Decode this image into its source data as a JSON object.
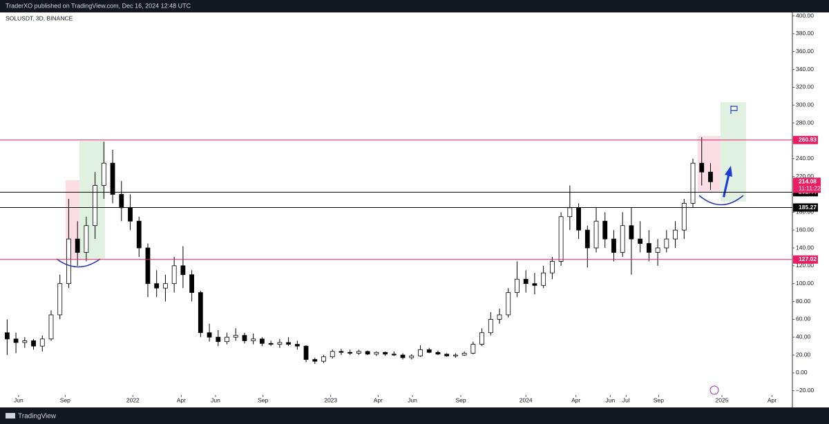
{
  "header": {
    "text": "TraderXO published on TradingView.com, Dec 16, 2024 12:48 UTC"
  },
  "footer": {
    "text": "TradingView"
  },
  "chart_data": {
    "type": "candlestick",
    "title": "SOLUSDT, 3D, BINANCE",
    "up_color": "#ffffff",
    "down_color": "#000000",
    "wick_color": "#000000",
    "categories": [
      null,
      null,
      null,
      null,
      null,
      null,
      null,
      null,
      null,
      null,
      null,
      null,
      null,
      null,
      null,
      null,
      null,
      null,
      null,
      null,
      null,
      null,
      null,
      null,
      null,
      null,
      null,
      null,
      null,
      null,
      null,
      null,
      null,
      null,
      null,
      null,
      null,
      null,
      null,
      null,
      null,
      null,
      null,
      null,
      null,
      null,
      null,
      null,
      null,
      null,
      null,
      null,
      null,
      null,
      null,
      null,
      null,
      null,
      null,
      null,
      null,
      null,
      null,
      null,
      null,
      null,
      null,
      null,
      null,
      null,
      null,
      null,
      null,
      null,
      null,
      null,
      null,
      null,
      null,
      null,
      null
    ],
    "open": [
      45,
      38,
      34,
      36,
      30,
      38,
      65,
      100,
      150,
      135,
      165,
      210,
      235,
      200,
      185,
      170,
      140,
      100,
      95,
      100,
      120,
      110,
      90,
      45,
      40,
      35,
      40,
      42,
      36,
      38,
      33,
      32,
      34,
      32,
      30,
      15,
      13,
      18,
      24,
      23,
      22,
      24,
      21,
      23,
      21,
      20,
      17,
      19,
      26,
      23,
      21,
      19,
      20,
      22,
      32,
      45,
      60,
      65,
      90,
      105,
      100,
      98,
      112,
      125,
      175,
      185,
      160,
      140,
      170,
      150,
      135,
      165,
      150,
      145,
      135,
      140,
      150,
      160,
      190,
      235,
      225
    ],
    "high": [
      60,
      45,
      40,
      38,
      42,
      70,
      110,
      195,
      170,
      175,
      225,
      259,
      250,
      215,
      200,
      175,
      145,
      115,
      110,
      130,
      142,
      115,
      92,
      55,
      48,
      45,
      50,
      45,
      44,
      40,
      36,
      38,
      40,
      36,
      31,
      17,
      20,
      26,
      27,
      26,
      26,
      25,
      24,
      24,
      24,
      22,
      21,
      31,
      28,
      25,
      22,
      22,
      24,
      35,
      50,
      68,
      72,
      95,
      125,
      115,
      112,
      120,
      130,
      180,
      210,
      190,
      165,
      185,
      180,
      160,
      180,
      185,
      170,
      160,
      150,
      160,
      170,
      195,
      240,
      264,
      235
    ],
    "low": [
      20,
      22,
      28,
      26,
      24,
      36,
      60,
      95,
      120,
      125,
      150,
      195,
      190,
      170,
      160,
      130,
      85,
      85,
      80,
      90,
      95,
      80,
      40,
      35,
      30,
      32,
      36,
      33,
      32,
      30,
      30,
      28,
      30,
      26,
      12,
      10,
      11,
      16,
      20,
      20,
      20,
      20,
      19,
      19,
      19,
      15,
      15,
      18,
      22,
      20,
      18,
      17,
      19,
      21,
      30,
      42,
      55,
      62,
      85,
      90,
      88,
      95,
      105,
      120,
      160,
      150,
      118,
      135,
      140,
      125,
      130,
      110,
      135,
      125,
      120,
      135,
      140,
      150,
      185,
      210,
      205
    ],
    "close": [
      38,
      34,
      36,
      30,
      38,
      65,
      100,
      150,
      135,
      165,
      210,
      235,
      200,
      185,
      170,
      140,
      100,
      95,
      100,
      120,
      110,
      90,
      45,
      40,
      35,
      40,
      42,
      36,
      38,
      33,
      32,
      34,
      32,
      30,
      15,
      13,
      18,
      24,
      23,
      22,
      24,
      21,
      23,
      21,
      20,
      17,
      19,
      26,
      23,
      21,
      19,
      20,
      22,
      32,
      45,
      60,
      65,
      90,
      105,
      100,
      98,
      112,
      125,
      175,
      185,
      160,
      140,
      170,
      150,
      135,
      165,
      150,
      145,
      135,
      140,
      150,
      160,
      190,
      235,
      225,
      214.08
    ],
    "xlim": [
      -0.5,
      89
    ],
    "xticks": [
      {
        "value": 1.3,
        "label": "Jun"
      },
      {
        "value": 6.6,
        "label": "Sep"
      },
      {
        "value": 14.3,
        "label": "2022"
      },
      {
        "value": 19.8,
        "label": "Apr"
      },
      {
        "value": 23.7,
        "label": "Jun"
      },
      {
        "value": 29.1,
        "label": "Sep"
      },
      {
        "value": 36.8,
        "label": "2023"
      },
      {
        "value": 42.2,
        "label": "Apr"
      },
      {
        "value": 46.1,
        "label": "Jun"
      },
      {
        "value": 51.6,
        "label": "Sep"
      },
      {
        "value": 59.0,
        "label": "2024"
      },
      {
        "value": 64.7,
        "label": "Apr"
      },
      {
        "value": 68.6,
        "label": "Jun"
      },
      {
        "value": 70.4,
        "label": "Jul"
      },
      {
        "value": 74.1,
        "label": "Sep"
      },
      {
        "value": 81.3,
        "label": "2025"
      },
      {
        "value": 87.0,
        "label": "Apr"
      }
    ],
    "ylim": [
      -20,
      400
    ],
    "yticks": [
      {
        "value": -20,
        "label": "−20.00"
      },
      {
        "value": 0,
        "label": "0.00"
      },
      {
        "value": 20,
        "label": "20.00"
      },
      {
        "value": 40,
        "label": "40.00"
      },
      {
        "value": 60,
        "label": "60.00"
      },
      {
        "value": 80,
        "label": "80.00"
      },
      {
        "value": 100,
        "label": "100.00"
      },
      {
        "value": 120,
        "label": "120.00"
      },
      {
        "value": 140,
        "label": "140.00"
      },
      {
        "value": 160,
        "label": "160.00"
      },
      {
        "value": 180,
        "label": "180.00"
      },
      {
        "value": 200,
        "label": "200.00"
      },
      {
        "value": 220,
        "label": "220.00"
      },
      {
        "value": 240,
        "label": "240.00"
      },
      {
        "value": 260,
        "label": "260.00"
      },
      {
        "value": 280,
        "label": "280.00"
      },
      {
        "value": 300,
        "label": "300.00"
      },
      {
        "value": 320,
        "label": "320.00"
      },
      {
        "value": 340,
        "label": "340.00"
      },
      {
        "value": 360,
        "label": "360.00"
      },
      {
        "value": 380,
        "label": "380.00"
      },
      {
        "value": 400,
        "label": "400.00"
      }
    ],
    "levels": [
      {
        "value": 260.93,
        "color": "#e91e63"
      },
      {
        "value": 202.44,
        "color": "#000000"
      },
      {
        "value": 185.27,
        "color": "#000000"
      },
      {
        "value": 127.02,
        "color": "#e91e63"
      }
    ],
    "last_price": {
      "value": 214.08,
      "countdown": "11:11:22",
      "color": "#e91e63"
    }
  }
}
